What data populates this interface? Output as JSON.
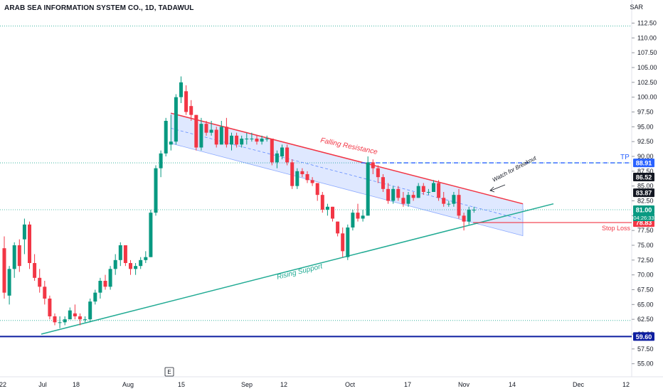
{
  "header": {
    "title": "ARAB SEA INFORMATION SYSTEM CO., 1D, TADAWUL",
    "currency": "SAR"
  },
  "colors": {
    "up": "#089981",
    "down": "#f23645",
    "resistance": "#f23645",
    "support": "#22ab94",
    "channel_fill": "#2962ff",
    "level_line": "#0d1ea0",
    "tp_line": "#2962ff",
    "stop_line": "#f23645"
  },
  "chart_data": {
    "type": "candlestick",
    "symbol": "ARAB SEA INFORMATION SYSTEM CO.",
    "interval": "1D",
    "exchange": "TADAWUL",
    "ylim": [
      54,
      114
    ],
    "y_ticks": [
      "55.00",
      "57.50",
      "60.00",
      "62.50",
      "65.00",
      "67.50",
      "70.00",
      "72.50",
      "75.00",
      "77.50",
      "80.00",
      "82.50",
      "85.00",
      "87.50",
      "90.00",
      "92.50",
      "95.00",
      "97.50",
      "100.00",
      "102.50",
      "105.00",
      "107.50",
      "110.00",
      "112.50"
    ],
    "x_labels": [
      "22",
      "Jul",
      "18",
      "Aug",
      "15",
      "Sep",
      "12",
      "Oct",
      "17",
      "Nov",
      "14",
      "Dec",
      "12"
    ],
    "marker_e": "E",
    "candles": [
      [
        74.5,
        76.5,
        66.0,
        67.0
      ],
      [
        66.5,
        71.5,
        65.0,
        71.0
      ],
      [
        71.0,
        75.5,
        69.5,
        75.0
      ],
      [
        75.0,
        76.0,
        70.5,
        71.5
      ],
      [
        76.0,
        79.5,
        73.5,
        78.5
      ],
      [
        78.5,
        79.0,
        71.0,
        72.0
      ],
      [
        72.0,
        73.5,
        69.0,
        69.5
      ],
      [
        69.5,
        71.0,
        67.0,
        68.0
      ],
      [
        68.0,
        69.0,
        65.0,
        66.0
      ],
      [
        66.0,
        66.5,
        62.5,
        63.0
      ],
      [
        63.0,
        63.5,
        61.5,
        62.0
      ],
      [
        62.0,
        63.0,
        61.0,
        62.0
      ],
      [
        62.0,
        63.0,
        61.5,
        62.5
      ],
      [
        62.5,
        64.5,
        62.5,
        64.0
      ],
      [
        63.5,
        65.0,
        62.5,
        63.0
      ],
      [
        63.0,
        63.5,
        61.5,
        62.5
      ],
      [
        62.5,
        63.0,
        62.0,
        62.5
      ],
      [
        62.5,
        66.0,
        62.0,
        65.5
      ],
      [
        65.5,
        67.5,
        65.0,
        67.0
      ],
      [
        67.0,
        69.5,
        66.0,
        69.0
      ],
      [
        69.0,
        70.0,
        67.5,
        68.0
      ],
      [
        68.0,
        71.5,
        67.5,
        71.0
      ],
      [
        71.0,
        73.5,
        70.0,
        72.5
      ],
      [
        72.5,
        75.5,
        71.5,
        75.0
      ],
      [
        75.0,
        74.5,
        71.5,
        72.0
      ],
      [
        72.0,
        72.5,
        70.0,
        71.0
      ],
      [
        71.0,
        72.0,
        70.0,
        71.5
      ],
      [
        71.5,
        73.0,
        71.0,
        72.5
      ],
      [
        72.5,
        74.0,
        72.0,
        73.0
      ],
      [
        73.0,
        81.0,
        73.0,
        80.5
      ],
      [
        80.5,
        88.5,
        80.0,
        88.0
      ],
      [
        88.0,
        91.0,
        86.5,
        90.5
      ],
      [
        90.5,
        96.5,
        90.0,
        96.0
      ],
      [
        92.0,
        97.0,
        91.0,
        92.5
      ],
      [
        92.5,
        100.5,
        92.0,
        100.0
      ],
      [
        100.0,
        103.5,
        99.0,
        102.5
      ],
      [
        101.0,
        102.0,
        97.0,
        97.5
      ],
      [
        98.5,
        99.5,
        96.0,
        97.0
      ],
      [
        97.0,
        97.0,
        91.0,
        91.5
      ],
      [
        91.5,
        96.5,
        91.0,
        95.5
      ],
      [
        95.5,
        96.0,
        93.5,
        94.0
      ],
      [
        94.0,
        96.0,
        93.5,
        94.5
      ],
      [
        94.5,
        95.0,
        91.5,
        92.0
      ],
      [
        92.0,
        96.0,
        92.0,
        95.0
      ],
      [
        95.0,
        96.5,
        91.5,
        92.0
      ],
      [
        92.0,
        94.0,
        91.0,
        93.5
      ],
      [
        93.5,
        94.0,
        91.5,
        92.0
      ],
      [
        92.0,
        93.5,
        91.5,
        93.0
      ],
      [
        93.0,
        94.0,
        92.0,
        93.0
      ],
      [
        93.0,
        94.0,
        92.5,
        93.0
      ],
      [
        93.0,
        93.5,
        92.0,
        92.5
      ],
      [
        92.5,
        93.5,
        92.0,
        93.0
      ],
      [
        93.0,
        93.5,
        92.5,
        93.0
      ],
      [
        93.0,
        93.0,
        88.5,
        89.0
      ],
      [
        89.0,
        91.0,
        88.0,
        90.5
      ],
      [
        90.0,
        92.0,
        89.5,
        91.5
      ],
      [
        91.5,
        92.0,
        88.5,
        89.0
      ],
      [
        89.0,
        89.5,
        84.5,
        85.0
      ],
      [
        85.0,
        88.0,
        84.5,
        87.5
      ],
      [
        87.5,
        88.0,
        86.5,
        87.0
      ],
      [
        87.0,
        87.5,
        85.5,
        86.0
      ],
      [
        86.0,
        86.5,
        85.0,
        85.5
      ],
      [
        85.5,
        85.0,
        82.5,
        83.5
      ],
      [
        83.5,
        84.0,
        80.5,
        81.0
      ],
      [
        81.0,
        82.0,
        80.0,
        81.5
      ],
      [
        81.5,
        81.5,
        79.0,
        79.5
      ],
      [
        79.0,
        79.0,
        76.5,
        77.0
      ],
      [
        77.0,
        78.0,
        73.0,
        74.0
      ],
      [
        73.0,
        78.5,
        72.5,
        78.0
      ],
      [
        78.0,
        81.0,
        77.5,
        80.5
      ],
      [
        80.5,
        82.0,
        79.0,
        79.5
      ],
      [
        79.5,
        81.0,
        79.0,
        80.0
      ],
      [
        80.0,
        90.0,
        80.0,
        89.0
      ],
      [
        89.0,
        89.5,
        87.0,
        88.0
      ],
      [
        88.0,
        88.5,
        85.5,
        86.5
      ],
      [
        86.5,
        87.0,
        84.0,
        84.5
      ],
      [
        84.5,
        85.5,
        82.0,
        82.5
      ],
      [
        82.5,
        85.0,
        82.0,
        84.5
      ],
      [
        84.5,
        85.0,
        82.5,
        83.0
      ],
      [
        83.0,
        84.0,
        81.5,
        82.0
      ],
      [
        82.0,
        84.0,
        81.5,
        83.5
      ],
      [
        83.5,
        84.0,
        82.5,
        83.0
      ],
      [
        83.0,
        85.5,
        83.0,
        85.0
      ],
      [
        85.0,
        85.5,
        83.5,
        84.0
      ],
      [
        84.0,
        84.5,
        83.5,
        84.0
      ],
      [
        84.0,
        86.0,
        84.0,
        85.5
      ],
      [
        85.5,
        86.0,
        82.5,
        83.0
      ],
      [
        83.0,
        84.0,
        81.5,
        82.0
      ],
      [
        82.0,
        82.5,
        81.5,
        82.0
      ],
      [
        82.0,
        84.0,
        81.5,
        83.5
      ],
      [
        83.5,
        84.5,
        79.5,
        80.0
      ],
      [
        80.0,
        80.5,
        77.5,
        79.0
      ],
      [
        79.0,
        81.5,
        78.5,
        81.0
      ],
      [
        81.0,
        81.5,
        80.5,
        81.0
      ]
    ],
    "levels": [
      {
        "value": 59.6,
        "label": "59.60"
      },
      {
        "value": 88.91,
        "label": "88.91",
        "name": "TP"
      },
      {
        "value": 86.52,
        "label": "86.52"
      },
      {
        "value": 83.87,
        "label": "83.87"
      },
      {
        "value": 81.0,
        "label": "81.00"
      },
      {
        "value": 78.83,
        "label": "78.83",
        "name": "Stop Loss"
      }
    ],
    "countdown": "04:26:33",
    "annotations": {
      "resistance": "Falling Resistance",
      "support": "Rising Support",
      "breakout": "Watch for Breakout",
      "tp": "TP",
      "stop": "Stop Loss"
    }
  }
}
